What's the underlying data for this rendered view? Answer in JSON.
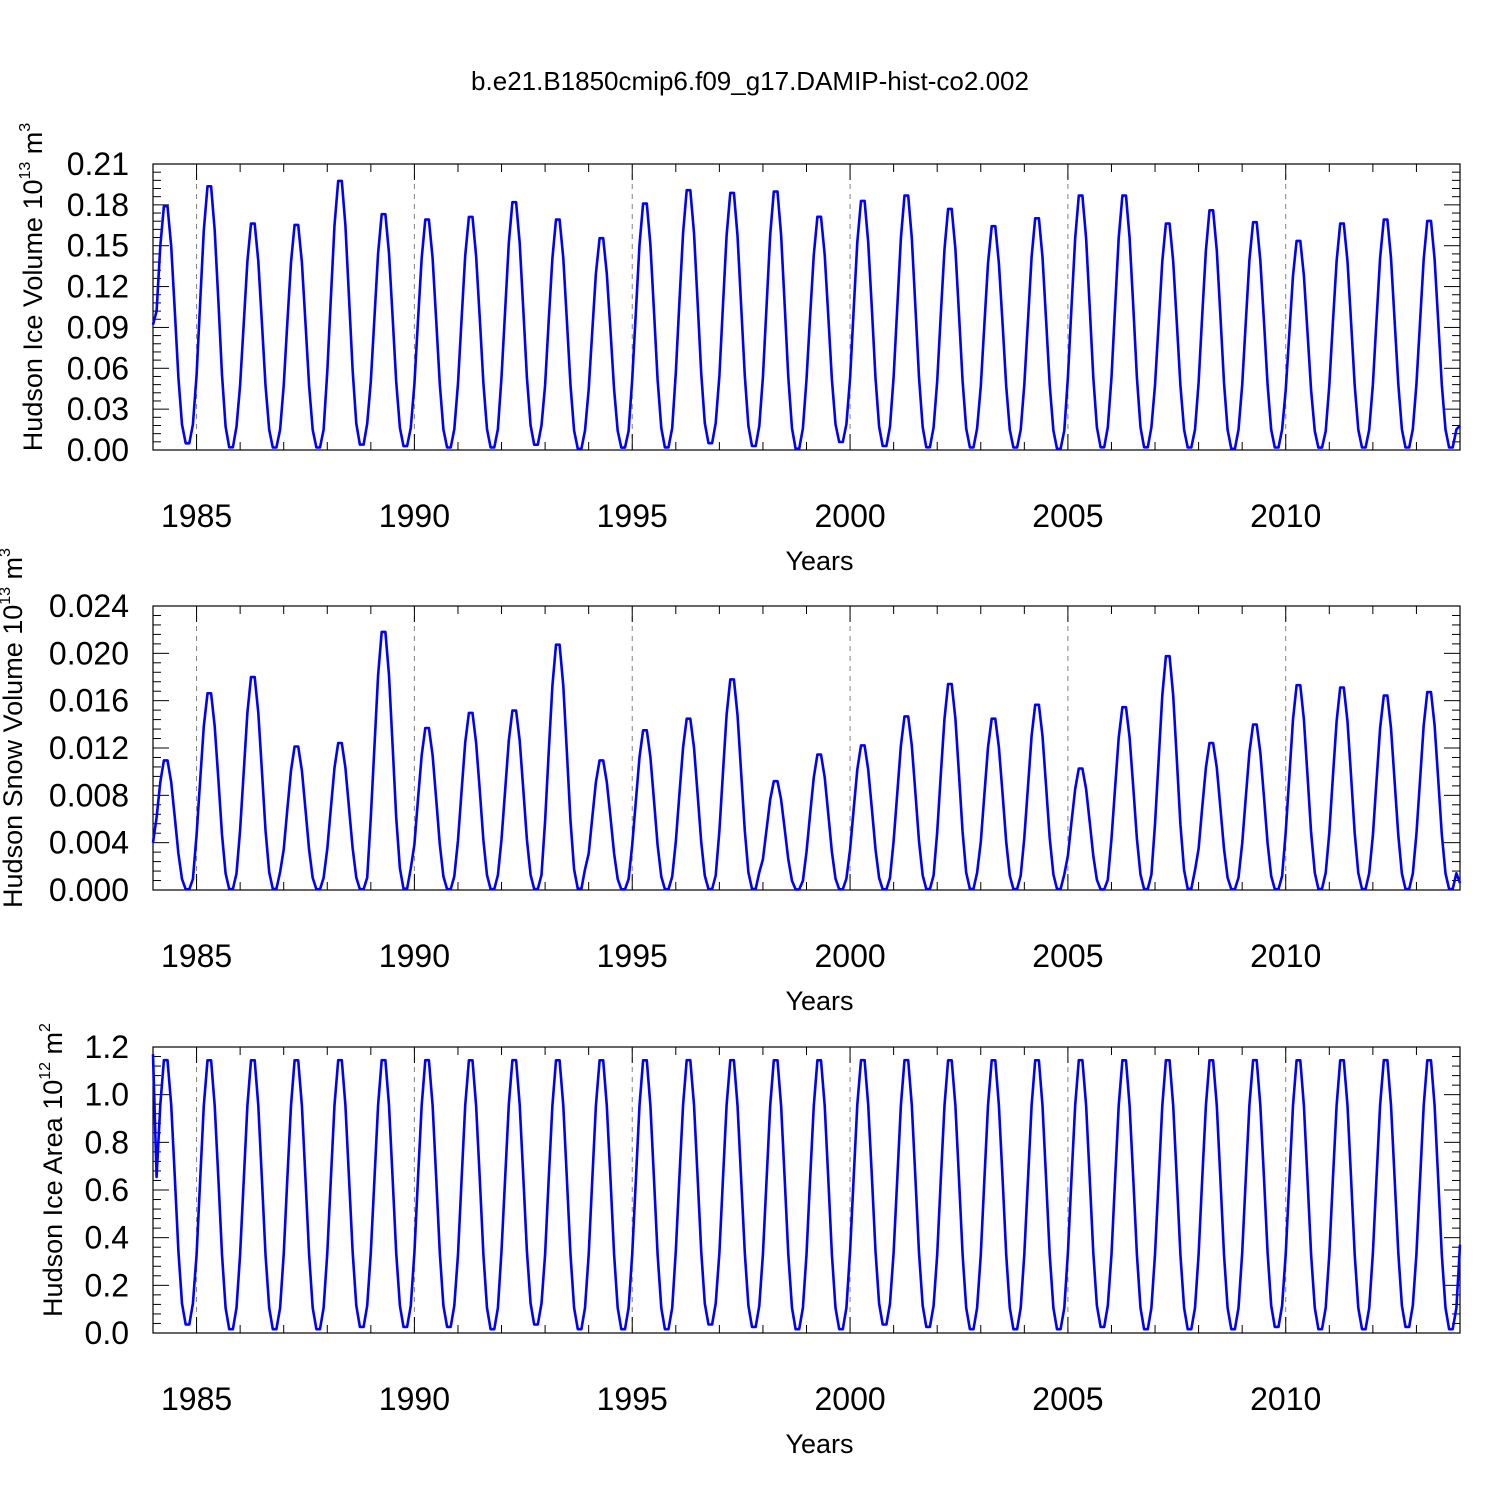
{
  "title": "b.e21.B1850cmip6.f09_g17.DAMIP-hist-co2.002",
  "colors": {
    "series": "#0000ff",
    "axis": "#000000",
    "grid": "#808080"
  },
  "chart_data": [
    {
      "type": "line",
      "name": "ice-volume",
      "ylabel": {
        "main": "Hudson Ice Volume 10",
        "exp": "13",
        "unit": " m",
        "unitexp": "3"
      },
      "xlabel": "Years",
      "xlim": [
        1984,
        2014
      ],
      "ylim": [
        0,
        0.21
      ],
      "yticks": [
        0.0,
        0.03,
        0.06,
        0.09,
        0.12,
        0.15,
        0.18,
        0.21
      ],
      "ytick_labels": [
        "0.00",
        "0.03",
        "0.06",
        "0.09",
        "0.12",
        "0.15",
        "0.18",
        "0.21"
      ],
      "xticks": [
        1985,
        1990,
        1995,
        2000,
        2005,
        2010
      ],
      "xtick_labels": [
        "1985",
        "1990",
        "1995",
        "2000",
        "2005",
        "2010"
      ],
      "series": [
        {
          "name": "Hudson Ice Volume",
          "peaks": [
            0.183,
            0.198,
            0.17,
            0.169,
            0.202,
            0.177,
            0.173,
            0.175,
            0.186,
            0.173,
            0.159,
            0.185,
            0.195,
            0.193,
            0.194,
            0.175,
            0.187,
            0.191,
            0.181,
            0.168,
            0.174,
            0.191,
            0.191,
            0.17,
            0.18,
            0.171,
            0.157,
            0.17,
            0.173,
            0.172
          ],
          "troughs": [
            0.004,
            0.001,
            0.001,
            0.001,
            0.003,
            0.002,
            0.001,
            0.001,
            0.003,
            0.0,
            0.001,
            0.001,
            0.004,
            0.002,
            0.0,
            0.005,
            0.002,
            0.001,
            0.001,
            0.001,
            0.0,
            0.001,
            0.001,
            0.001,
            0.0,
            0.001,
            0.001,
            0.001,
            0.001,
            0.001
          ],
          "start": 0.092,
          "end": 0.018
        }
      ]
    },
    {
      "type": "line",
      "name": "snow-volume",
      "ylabel": {
        "main": "Hudson Snow Volume 10",
        "exp": "13",
        "unit": " m",
        "unitexp": "3"
      },
      "xlabel": "Years",
      "xlim": [
        1984,
        2014
      ],
      "ylim": [
        0,
        0.024
      ],
      "yticks": [
        0.0,
        0.004,
        0.008,
        0.012,
        0.016,
        0.02,
        0.024
      ],
      "ytick_labels": [
        "0.000",
        "0.004",
        "0.008",
        "0.012",
        "0.016",
        "0.020",
        "0.024"
      ],
      "xticks": [
        1985,
        1990,
        1995,
        2000,
        2005,
        2010
      ],
      "xtick_labels": [
        "1985",
        "1990",
        "1995",
        "2000",
        "2005",
        "2010"
      ],
      "series": [
        {
          "name": "Hudson Snow Volume",
          "peaks": [
            0.0112,
            0.017,
            0.0184,
            0.0124,
            0.0127,
            0.0223,
            0.014,
            0.0153,
            0.0155,
            0.0212,
            0.0112,
            0.0138,
            0.0148,
            0.0182,
            0.0094,
            0.0117,
            0.0125,
            0.015,
            0.0178,
            0.0148,
            0.016,
            0.0105,
            0.0158,
            0.0202,
            0.0127,
            0.0143,
            0.0177,
            0.0175,
            0.0168,
            0.0171
          ],
          "troughs": [
            0.0,
            0.0,
            0.0,
            0.0,
            0.0,
            0.0,
            0.0,
            0.0,
            0.0,
            0.0,
            0.0,
            0.0,
            0.0,
            0.0,
            0.0,
            0.0,
            0.0,
            0.0,
            0.0,
            0.0,
            0.0,
            0.0,
            0.0,
            0.0,
            0.0,
            0.0,
            0.0,
            0.0,
            0.0,
            0.0
          ],
          "start": 0.004,
          "end": 0.0006
        }
      ]
    },
    {
      "type": "line",
      "name": "ice-area",
      "ylabel": {
        "main": "Hudson Ice Area 10",
        "exp": "12",
        "unit": " m",
        "unitexp": "2"
      },
      "xlabel": "Years",
      "xlim": [
        1984,
        2014
      ],
      "ylim": [
        0,
        1.2
      ],
      "yticks": [
        0.0,
        0.2,
        0.4,
        0.6,
        0.8,
        1.0,
        1.2
      ],
      "ytick_labels": [
        "0.0",
        "0.2",
        "0.4",
        "0.6",
        "0.8",
        "1.0",
        "1.2"
      ],
      "xticks": [
        1985,
        1990,
        1995,
        2000,
        2005,
        2010
      ],
      "xtick_labels": [
        "1985",
        "1990",
        "1995",
        "2000",
        "2005",
        "2010"
      ],
      "series": [
        {
          "name": "Hudson Ice Area",
          "peaks": [
            1.17,
            1.17,
            1.17,
            1.17,
            1.17,
            1.17,
            1.17,
            1.17,
            1.17,
            1.17,
            1.17,
            1.17,
            1.17,
            1.17,
            1.17,
            1.17,
            1.17,
            1.17,
            1.17,
            1.17,
            1.17,
            1.17,
            1.17,
            1.17,
            1.17,
            1.17,
            1.17,
            1.17,
            1.17,
            1.17
          ],
          "troughs": [
            0.03,
            0.01,
            0.01,
            0.01,
            0.02,
            0.02,
            0.02,
            0.01,
            0.03,
            0.01,
            0.01,
            0.01,
            0.03,
            0.02,
            0.01,
            0.01,
            0.03,
            0.02,
            0.01,
            0.01,
            0.01,
            0.02,
            0.01,
            0.01,
            0.01,
            0.02,
            0.01,
            0.01,
            0.02,
            0.01
          ],
          "start": 1.17,
          "end": 0.37
        }
      ]
    }
  ]
}
